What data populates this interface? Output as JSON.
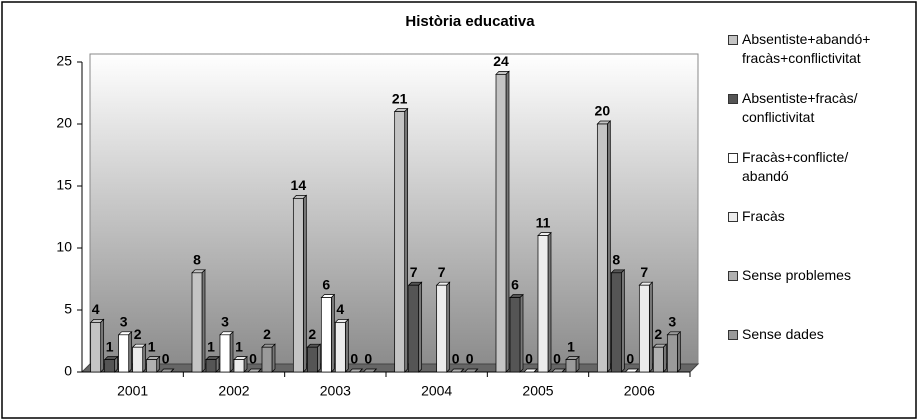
{
  "chart_data": {
    "type": "bar",
    "title": "Història educativa",
    "categories": [
      "2001",
      "2002",
      "2003",
      "2004",
      "2005",
      "2006"
    ],
    "series": [
      {
        "name": "Absentiste+abandó+\nfracàs+conflictivitat",
        "color": "#c4c4c4",
        "values": [
          4,
          8,
          14,
          21,
          24,
          20
        ]
      },
      {
        "name": "Absentiste+fracàs/\nconflictivitat",
        "color": "#555555",
        "values": [
          1,
          1,
          2,
          7,
          6,
          8
        ]
      },
      {
        "name": "Fracàs+conflicte/\nabandó",
        "color": "#ffffff",
        "values": [
          3,
          3,
          6,
          null,
          0,
          0
        ]
      },
      {
        "name": "Fracàs",
        "color": "#ececec",
        "values": [
          2,
          1,
          4,
          7,
          11,
          7
        ]
      },
      {
        "name": "Sense problemes",
        "color": "#b0b0b0",
        "values": [
          1,
          0,
          0,
          0,
          0,
          2
        ]
      },
      {
        "name": "Sense dades",
        "color": "#9a9a9a",
        "values": [
          0,
          2,
          0,
          0,
          1,
          3
        ]
      }
    ],
    "ylim": [
      0,
      25
    ],
    "yticks": [
      0,
      5,
      10,
      15,
      20,
      25
    ],
    "legend": "right"
  }
}
